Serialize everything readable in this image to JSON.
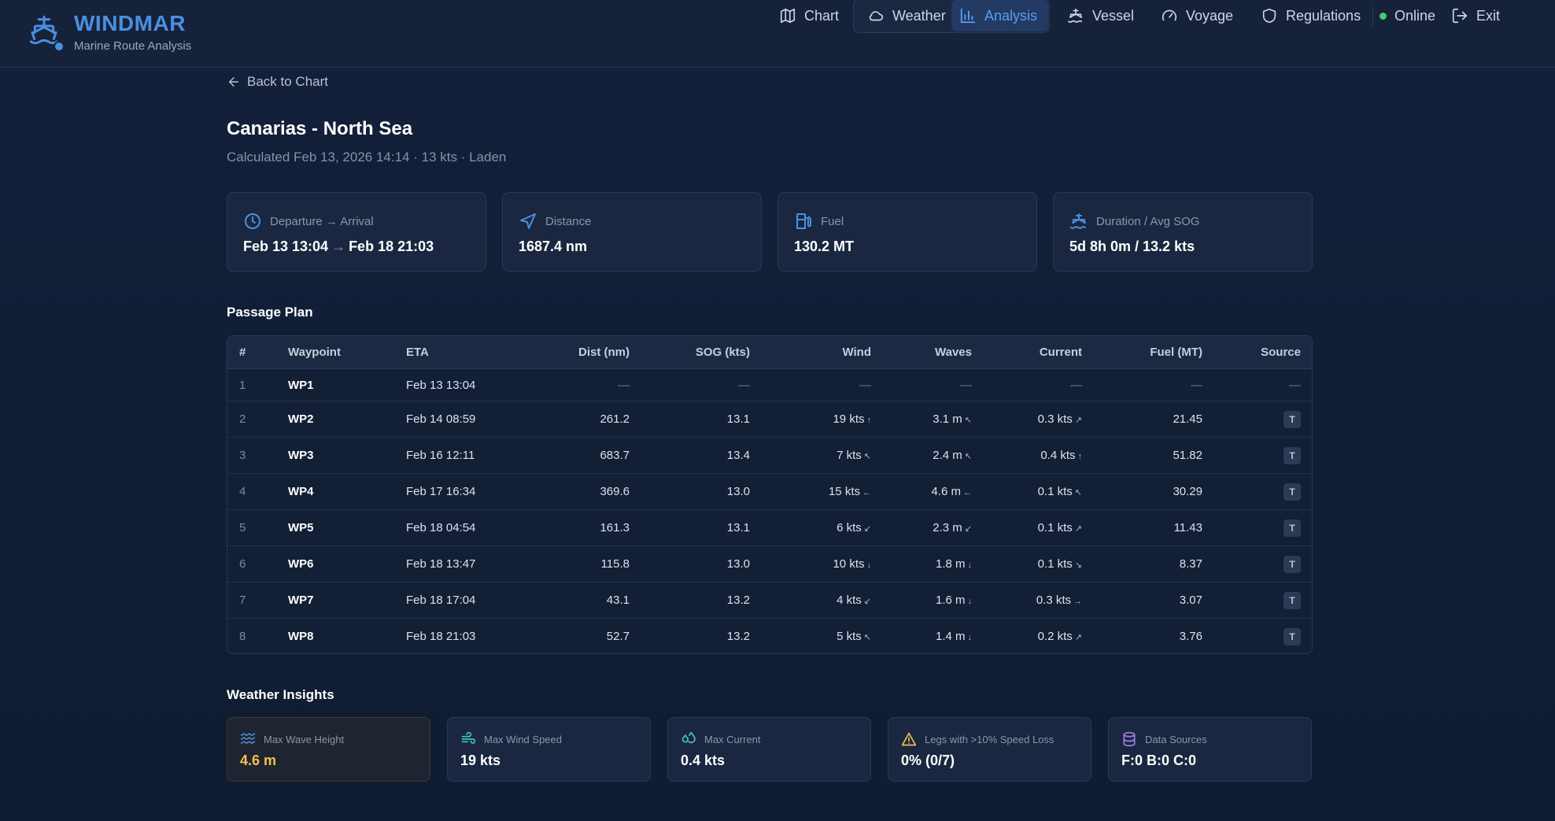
{
  "app": {
    "title": "WINDMAR",
    "subtitle": "Marine Route Analysis"
  },
  "nav": {
    "items": [
      {
        "label": "Chart",
        "icon": "map-icon"
      },
      {
        "label": "Weather",
        "icon": "cloud-icon"
      },
      {
        "label": "Analysis",
        "icon": "bar-chart-icon",
        "active": true
      },
      {
        "label": "Vessel",
        "icon": "ship-icon"
      },
      {
        "label": "Voyage",
        "icon": "gauge-icon"
      },
      {
        "label": "Regulations",
        "icon": "shield-icon"
      }
    ],
    "status": "Online",
    "exit": "Exit"
  },
  "back_label": "Back to Chart",
  "route": {
    "title": "Canarias - North Sea",
    "subtitle": "Calculated Feb 13, 2026 14:14 · 13 kts · Laden"
  },
  "summary": {
    "departure_label": "Departure → Arrival",
    "departure": "Feb 13 13:04",
    "arrow": "→",
    "arrival": "Feb 18 21:03",
    "distance_label": "Distance",
    "distance": "1687.4 nm",
    "fuel_label": "Fuel",
    "fuel": "130.2 MT",
    "duration_label": "Duration / Avg SOG",
    "duration": "5d 8h 0m / 13.2 kts"
  },
  "passage": {
    "title": "Passage Plan",
    "headers": [
      "#",
      "Waypoint",
      "ETA",
      "Dist (nm)",
      "SOG (kts)",
      "Wind",
      "Waves",
      "Current",
      "Fuel (MT)",
      "Source"
    ],
    "rows": [
      {
        "idx": "1",
        "wp": "WP1",
        "eta": "Feb 13 13:04",
        "dist": "—",
        "sog": "—",
        "wind": "—",
        "wind_dir": "",
        "waves": "—",
        "waves_dir": "",
        "current": "—",
        "current_dir": "",
        "fuel": "—",
        "source": "—"
      },
      {
        "idx": "2",
        "wp": "WP2",
        "eta": "Feb 14 08:59",
        "dist": "261.2",
        "sog": "13.1",
        "wind": "19 kts",
        "wind_dir": "↑",
        "waves": "3.1 m",
        "waves_dir": "↖",
        "current": "0.3 kts",
        "current_dir": "↗",
        "fuel": "21.45",
        "source": "T"
      },
      {
        "idx": "3",
        "wp": "WP3",
        "eta": "Feb 16 12:11",
        "dist": "683.7",
        "sog": "13.4",
        "wind": "7 kts",
        "wind_dir": "↖",
        "waves": "2.4 m",
        "waves_dir": "↖",
        "current": "0.4 kts",
        "current_dir": "↑",
        "fuel": "51.82",
        "source": "T"
      },
      {
        "idx": "4",
        "wp": "WP4",
        "eta": "Feb 17 16:34",
        "dist": "369.6",
        "sog": "13.0",
        "wind": "15 kts",
        "wind_dir": "←",
        "waves": "4.6 m",
        "waves_dir": "←",
        "current": "0.1 kts",
        "current_dir": "↖",
        "fuel": "30.29",
        "source": "T"
      },
      {
        "idx": "5",
        "wp": "WP5",
        "eta": "Feb 18 04:54",
        "dist": "161.3",
        "sog": "13.1",
        "wind": "6 kts",
        "wind_dir": "↙",
        "waves": "2.3 m",
        "waves_dir": "↙",
        "current": "0.1 kts",
        "current_dir": "↗",
        "fuel": "11.43",
        "source": "T"
      },
      {
        "idx": "6",
        "wp": "WP6",
        "eta": "Feb 18 13:47",
        "dist": "115.8",
        "sog": "13.0",
        "wind": "10 kts",
        "wind_dir": "↓",
        "waves": "1.8 m",
        "waves_dir": "↓",
        "current": "0.1 kts",
        "current_dir": "↘",
        "fuel": "8.37",
        "source": "T"
      },
      {
        "idx": "7",
        "wp": "WP7",
        "eta": "Feb 18 17:04",
        "dist": "43.1",
        "sog": "13.2",
        "wind": "4 kts",
        "wind_dir": "↙",
        "waves": "1.6 m",
        "waves_dir": "↓",
        "current": "0.3 kts",
        "current_dir": "→",
        "fuel": "3.07",
        "source": "T"
      },
      {
        "idx": "8",
        "wp": "WP8",
        "eta": "Feb 18 21:03",
        "dist": "52.7",
        "sog": "13.2",
        "wind": "5 kts",
        "wind_dir": "↖",
        "waves": "1.4 m",
        "waves_dir": "↓",
        "current": "0.2 kts",
        "current_dir": "↗",
        "fuel": "3.76",
        "source": "T"
      }
    ]
  },
  "insights": {
    "title": "Weather Insights",
    "items": [
      {
        "label": "Max Wave Height",
        "value": "4.6 m",
        "icon": "waves-icon"
      },
      {
        "label": "Max Wind Speed",
        "value": "19 kts",
        "icon": "wind-icon"
      },
      {
        "label": "Max Current",
        "value": "0.4 kts",
        "icon": "droplets-icon"
      },
      {
        "label": "Legs with >10% Speed Loss",
        "value": "0% (0/7)",
        "icon": "warning-icon"
      },
      {
        "label": "Data Sources",
        "value": "F:0 B:0 C:0",
        "icon": "database-icon"
      }
    ]
  },
  "colors": {
    "accent": "#4a8fe0",
    "online": "#3fcf6f",
    "warning": "#f2c14e",
    "teal": "#3cc4c4",
    "purple": "#a77ee8"
  }
}
